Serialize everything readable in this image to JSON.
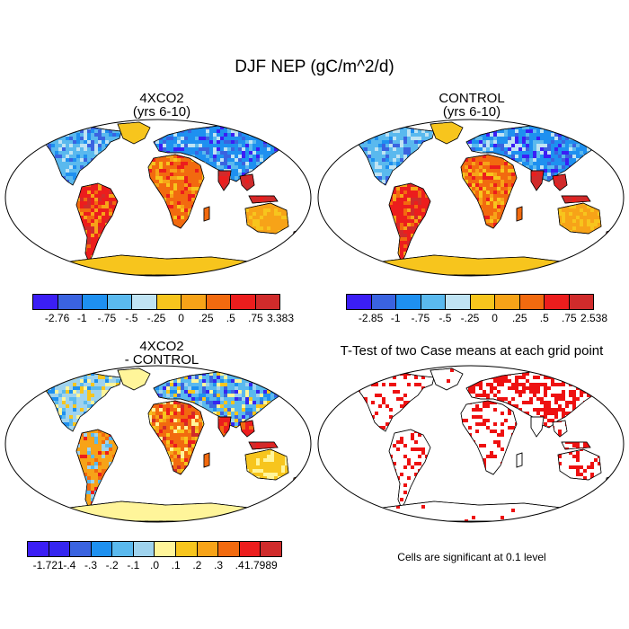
{
  "figure": {
    "title": "DJF NEP (gC/m^2/d)",
    "panels": [
      {
        "title_line1": "4XCO2",
        "title_line2": "(yrs 6-10)",
        "colorbar": {
          "labels": [
            "-2.76",
            "-1",
            "-.75",
            "-.5",
            "-.25",
            "0",
            ".25",
            ".5",
            ".75",
            "3.383"
          ],
          "colors": [
            "#3b1ef5",
            "#3a63e0",
            "#1e90f0",
            "#5ab9ee",
            "#bfe3f3",
            "#f7c51d",
            "#f7a318",
            "#f26a0f",
            "#ec1d1d",
            "#d02b2b"
          ]
        }
      },
      {
        "title_line1": "CONTROL",
        "title_line2": "(yrs 6-10)",
        "colorbar": {
          "labels": [
            "-2.85",
            "-1",
            "-.75",
            "-.5",
            "-.25",
            "0",
            ".25",
            ".5",
            ".75",
            "2.538"
          ],
          "colors": [
            "#3b1ef5",
            "#3a63e0",
            "#1e90f0",
            "#5ab9ee",
            "#bfe3f3",
            "#f7c51d",
            "#f7a318",
            "#f26a0f",
            "#ec1d1d",
            "#d02b2b"
          ]
        }
      },
      {
        "title_line1": "4XCO2",
        "title_line2": "- CONTROL",
        "colorbar": {
          "labels": [
            "-1.721",
            "-.4",
            "-.3",
            "-.2",
            "-.1",
            ".0",
            ".1",
            ".2",
            ".3",
            ".4",
            "1.7989"
          ],
          "colors": [
            "#3b1ef5",
            "#3526f0",
            "#3a63e0",
            "#1e90f0",
            "#5ab9ee",
            "#9fd3ee",
            "#fff59a",
            "#f7c51d",
            "#f7a318",
            "#f26a0f",
            "#ec1d1d",
            "#d02b2b"
          ]
        }
      },
      {
        "title_line1": "T-Test of two Case means at each grid point",
        "note": "Cells are significant at 0.1 level",
        "sig_color": "#ee1111"
      }
    ]
  }
}
